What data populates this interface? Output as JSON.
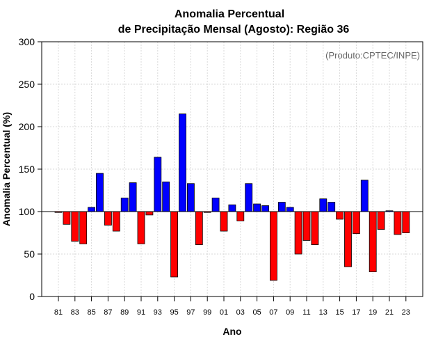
{
  "chart_data": {
    "type": "bar",
    "title": [
      "Anomalia Percentual",
      "de Precipitação Mensal (Agosto): Região 36"
    ],
    "credit": "(Produto:CPTEC/INPE)",
    "xlabel": "Ano",
    "ylabel": "Anomalia Percentual (%)",
    "ylim": [
      0,
      300
    ],
    "yticks": [
      0,
      50,
      100,
      150,
      200,
      250,
      300
    ],
    "baseline": 100,
    "grid": true,
    "colors": {
      "above": "#0000ff",
      "below": "#ff0000",
      "edge": "#000000",
      "grid": "#d9d9d9",
      "baseline": "#000000"
    },
    "categories": [
      "81",
      "82",
      "83",
      "84",
      "85",
      "86",
      "87",
      "88",
      "89",
      "90",
      "91",
      "92",
      "93",
      "94",
      "95",
      "96",
      "97",
      "98",
      "99",
      "00",
      "01",
      "02",
      "03",
      "04",
      "05",
      "06",
      "07",
      "08",
      "09",
      "10",
      "11",
      "12",
      "13",
      "14",
      "15",
      "16",
      "17",
      "18",
      "19",
      "20",
      "21",
      "22",
      "23"
    ],
    "tick_labels": [
      "81",
      "83",
      "85",
      "87",
      "89",
      "91",
      "93",
      "95",
      "97",
      "99",
      "01",
      "03",
      "05",
      "07",
      "09",
      "11",
      "13",
      "15",
      "17",
      "19",
      "21",
      "23"
    ],
    "values": [
      99,
      85,
      65,
      62,
      105,
      145,
      84,
      77,
      116,
      134,
      62,
      96,
      164,
      135,
      23,
      215,
      133,
      61,
      99,
      116,
      77,
      108,
      89,
      133,
      109,
      107,
      19,
      111,
      105,
      50,
      66,
      61,
      115,
      111,
      91,
      35,
      74,
      137,
      29,
      79,
      101,
      73,
      75
    ]
  }
}
